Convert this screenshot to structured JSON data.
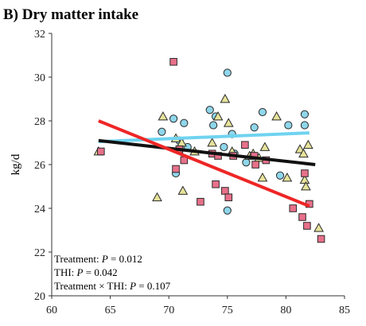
{
  "chart_data": {
    "type": "scatter",
    "title": "B) Dry matter intake",
    "xlabel": "",
    "ylabel": "kg/d",
    "xlim": [
      60,
      85
    ],
    "ylim": [
      20,
      32
    ],
    "xticks": [
      60,
      65,
      70,
      75,
      80,
      85
    ],
    "yticks": [
      20,
      22,
      24,
      26,
      28,
      30,
      32
    ],
    "grid": false,
    "series": [
      {
        "marker": "circle",
        "color": "#8fd6ea",
        "points": [
          [
            69.4,
            27.5
          ],
          [
            70.4,
            28.1
          ],
          [
            70.6,
            25.6
          ],
          [
            70.9,
            27.1
          ],
          [
            71.3,
            27.9
          ],
          [
            71.6,
            26.8
          ],
          [
            73.5,
            28.5
          ],
          [
            73.8,
            27.8
          ],
          [
            74.0,
            28.2
          ],
          [
            74.7,
            26.8
          ],
          [
            75.0,
            23.9
          ],
          [
            75.0,
            30.2
          ],
          [
            75.4,
            27.4
          ],
          [
            75.6,
            26.5
          ],
          [
            76.6,
            26.1
          ],
          [
            77.3,
            27.7
          ],
          [
            78.0,
            28.4
          ],
          [
            79.5,
            25.5
          ],
          [
            80.2,
            27.8
          ],
          [
            81.6,
            27.8
          ],
          [
            81.6,
            28.3
          ]
        ]
      },
      {
        "marker": "triangle",
        "color": "#e6e39a",
        "points": [
          [
            64.0,
            26.6
          ],
          [
            69.0,
            24.5
          ],
          [
            69.5,
            28.2
          ],
          [
            70.6,
            27.2
          ],
          [
            71.1,
            27.0
          ],
          [
            71.2,
            24.8
          ],
          [
            72.2,
            26.6
          ],
          [
            73.7,
            27.0
          ],
          [
            74.2,
            28.2
          ],
          [
            74.8,
            29.0
          ],
          [
            75.1,
            27.9
          ],
          [
            75.4,
            26.6
          ],
          [
            76.9,
            26.4
          ],
          [
            77.2,
            26.5
          ],
          [
            77.7,
            26.3
          ],
          [
            78.0,
            25.4
          ],
          [
            78.2,
            26.8
          ],
          [
            79.2,
            28.2
          ],
          [
            80.1,
            25.4
          ],
          [
            81.2,
            26.7
          ],
          [
            81.5,
            26.5
          ],
          [
            81.6,
            25.3
          ],
          [
            81.7,
            25.0
          ],
          [
            81.9,
            26.9
          ],
          [
            82.8,
            23.1
          ]
        ]
      },
      {
        "marker": "square",
        "color": "#e8708a",
        "points": [
          [
            64.2,
            26.6
          ],
          [
            70.4,
            30.7
          ],
          [
            70.6,
            25.8
          ],
          [
            70.9,
            26.7
          ],
          [
            71.3,
            26.2
          ],
          [
            72.7,
            24.3
          ],
          [
            73.7,
            26.5
          ],
          [
            74.0,
            25.1
          ],
          [
            74.2,
            26.4
          ],
          [
            74.8,
            24.8
          ],
          [
            75.1,
            24.5
          ],
          [
            75.5,
            26.4
          ],
          [
            76.5,
            26.9
          ],
          [
            77.3,
            26.4
          ],
          [
            77.4,
            26.0
          ],
          [
            78.3,
            26.2
          ],
          [
            80.6,
            24.0
          ],
          [
            81.4,
            23.6
          ],
          [
            81.6,
            25.6
          ],
          [
            81.8,
            23.2
          ],
          [
            82.0,
            24.2
          ],
          [
            83.0,
            22.6
          ]
        ]
      }
    ],
    "trendlines": [
      {
        "color": "#6fd3f0",
        "x": [
          64,
          82
        ],
        "y": [
          27.05,
          27.45
        ]
      },
      {
        "color": "#111111",
        "x": [
          64,
          82.5
        ],
        "y": [
          27.1,
          26.0
        ]
      },
      {
        "color": "#ee2626",
        "x": [
          64,
          82
        ],
        "y": [
          28.0,
          24.1
        ]
      }
    ],
    "annotations": [
      {
        "label": "Treatment:",
        "pval": "P",
        "value": " = 0.012"
      },
      {
        "label": "THI:",
        "pval": "P",
        "value": " = 0.042"
      },
      {
        "label": "Treatment × THI:",
        "pval": "P",
        "value": " = 0.107"
      }
    ]
  }
}
